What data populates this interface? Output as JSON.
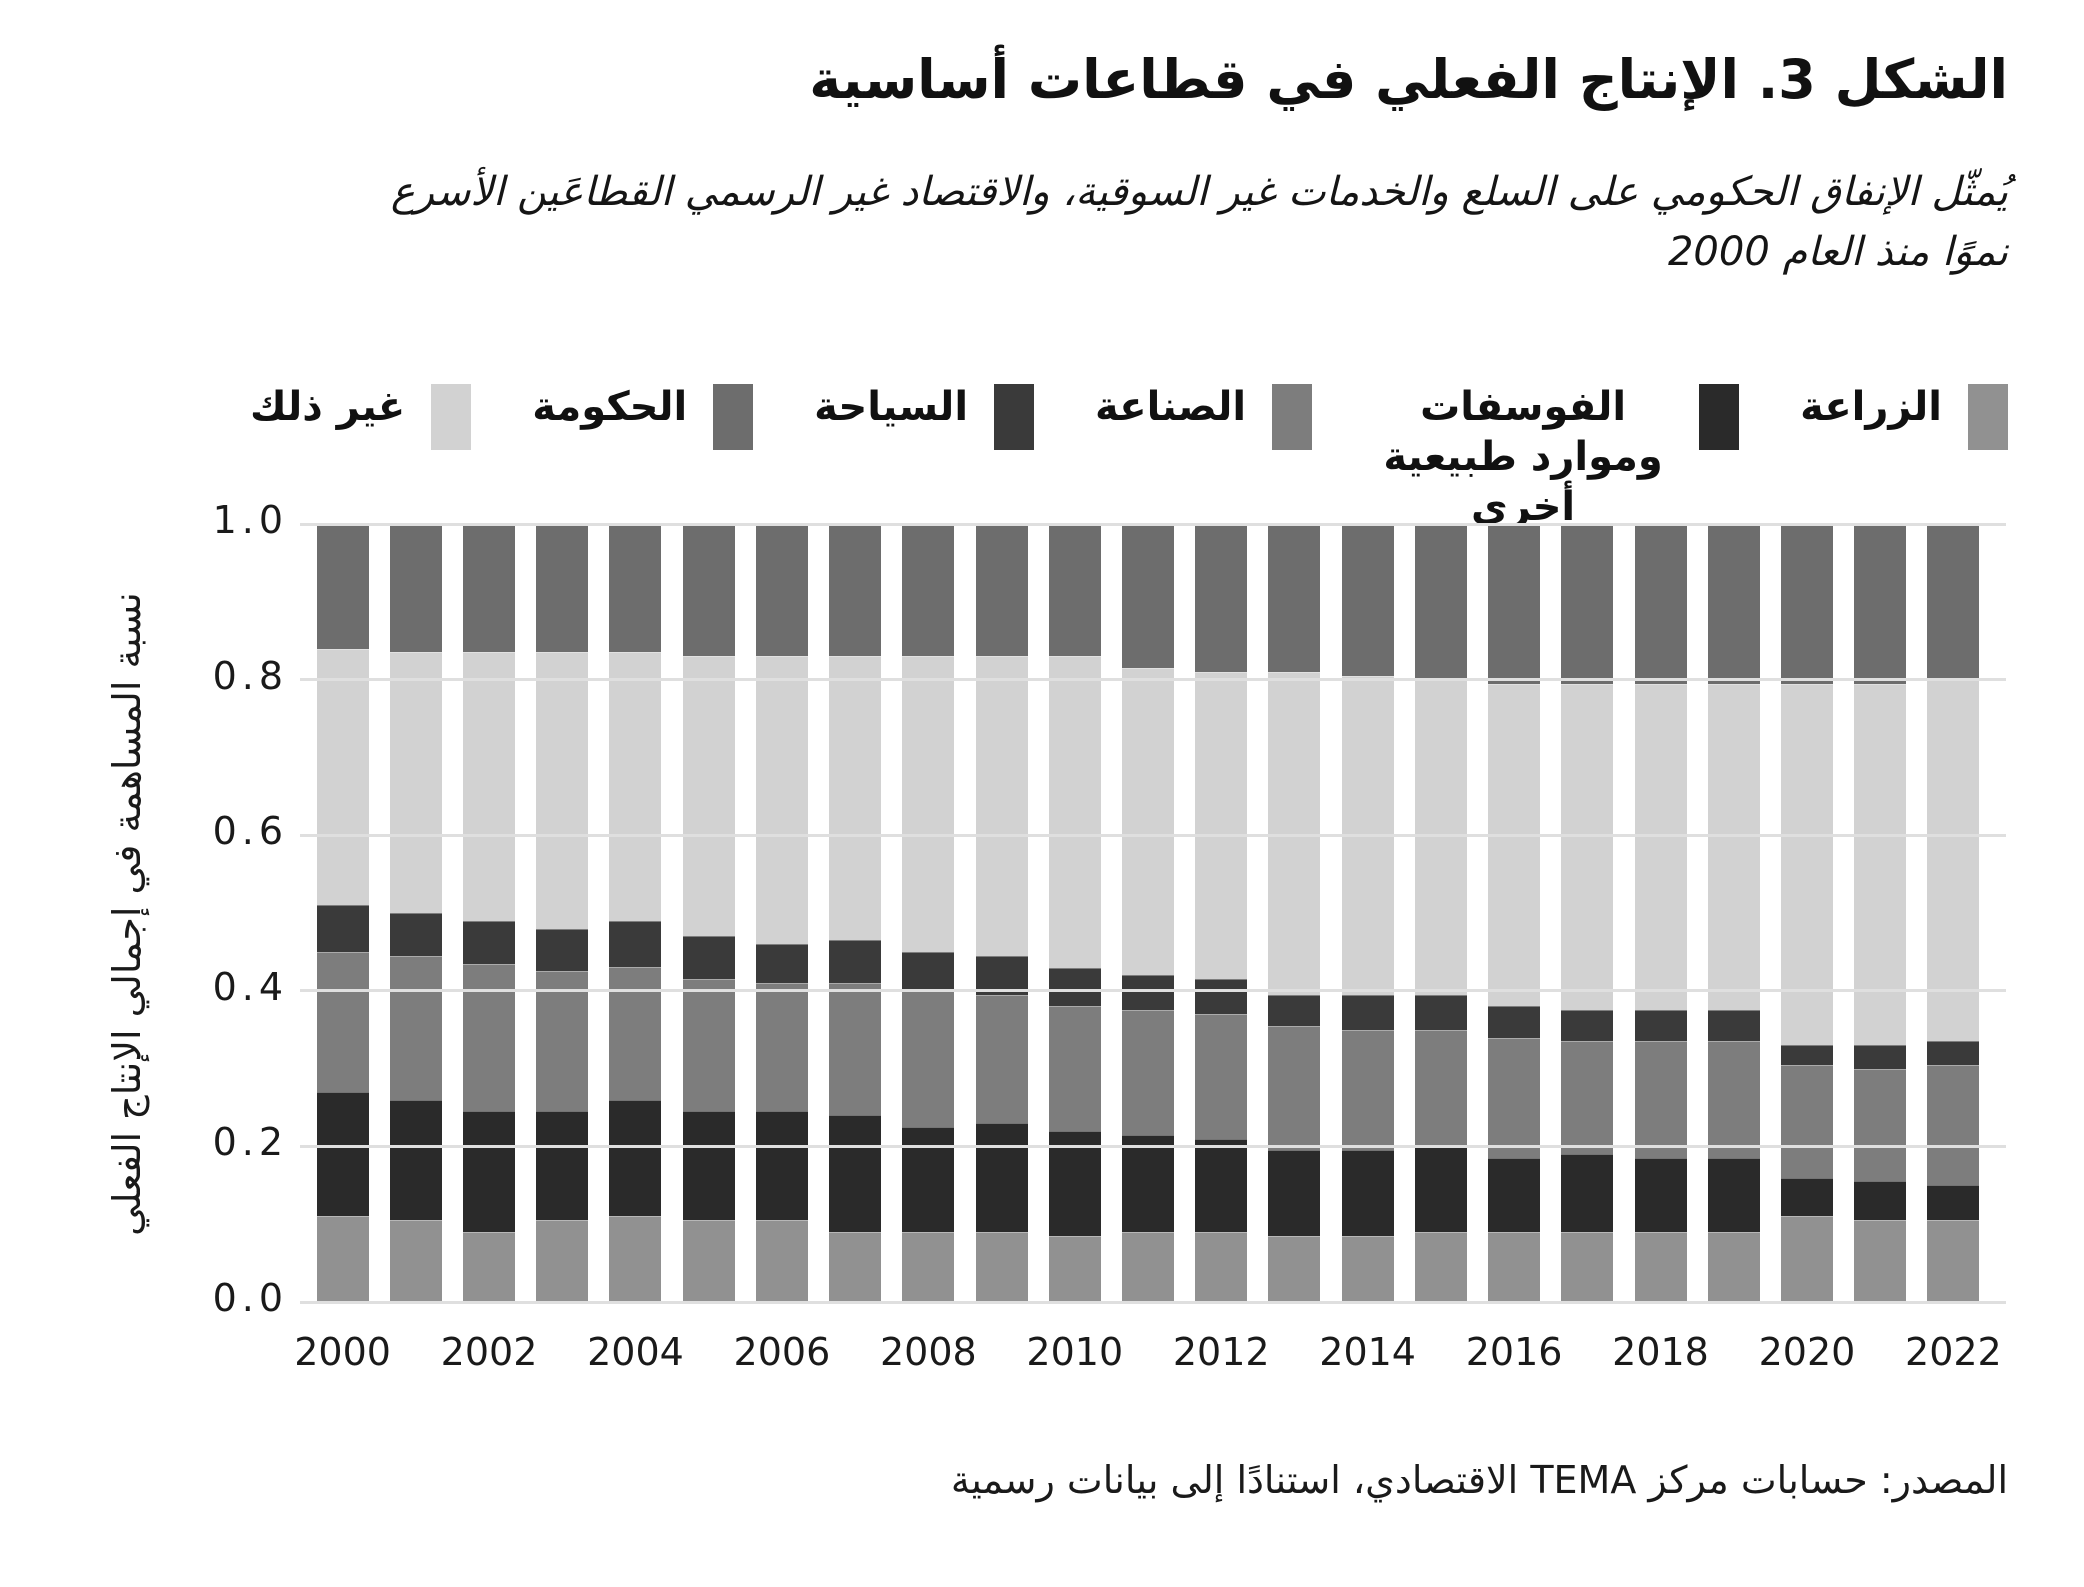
{
  "header": {
    "title": "الشكل 3. الإنتاج الفعلي في قطاعات أساسية",
    "subtitle_line1": "يُمثّل الإنفاق الحكومي على السلع والخدمات غير السوقية، والاقتصاد غير الرسمي القطاعَين الأسرع",
    "subtitle_line2": "نموًا منذ العام 2000"
  },
  "source": "المصدر: حسابات مركز TEMA الاقتصادي، استنادًا إلى بيانات رسمية",
  "colors": {
    "agriculture": "#919191",
    "phosphates": "#2a2a2a",
    "industry": "#7d7d7d",
    "tourism": "#3a3a3a",
    "other": "#d2d2d2",
    "government": "#6d6d6d",
    "gridline": "#dfdfdf"
  },
  "legend_items": [
    {
      "label": "غير ذلك",
      "color": "#d2d2d2",
      "wrap": false
    },
    {
      "label": "الحكومة",
      "color": "#6d6d6d",
      "wrap": false
    },
    {
      "label": "السياحة",
      "color": "#3a3a3a",
      "wrap": false
    },
    {
      "label": "الصناعة",
      "color": "#7d7d7d",
      "wrap": false
    },
    {
      "label": "الفوسفات وموارد طبيعية أخرى",
      "color": "#2a2a2a",
      "wrap": true
    },
    {
      "label": "الزراعة",
      "color": "#919191",
      "wrap": false
    }
  ],
  "chart_data": {
    "type": "bar",
    "stacked": true,
    "title": "الشكل 3. الإنتاج الفعلي في قطاعات أساسية",
    "xlabel": "",
    "ylabel": "نسبة المساهمة في إجمالي الإنتاج الفعلي",
    "ylim": [
      0.0,
      1.0
    ],
    "grid": true,
    "legend_position": "top",
    "x": [
      2000,
      2001,
      2002,
      2003,
      2004,
      2005,
      2006,
      2007,
      2008,
      2009,
      2010,
      2011,
      2012,
      2013,
      2014,
      2015,
      2016,
      2017,
      2018,
      2019,
      2020,
      2021,
      2022
    ],
    "x_tick_labels": [
      "2000",
      "2002",
      "2004",
      "2006",
      "2008",
      "2010",
      "2012",
      "2014",
      "2016",
      "2018",
      "2020",
      "2022"
    ],
    "y_ticks": [
      "1.0",
      "0.8",
      "0.6",
      "0.4",
      "0.2",
      "0.0"
    ],
    "series": [
      {
        "name": "الزراعة",
        "color": "#919191",
        "values": [
          0.11,
          0.105,
          0.09,
          0.105,
          0.11,
          0.105,
          0.105,
          0.09,
          0.09,
          0.09,
          0.085,
          0.09,
          0.09,
          0.085,
          0.085,
          0.09,
          0.09,
          0.09,
          0.09,
          0.09,
          0.11,
          0.105,
          0.105
        ]
      },
      {
        "name": "الفوسفات وموارد طبيعية أخرى",
        "color": "#2a2a2a",
        "values": [
          0.16,
          0.155,
          0.155,
          0.14,
          0.15,
          0.14,
          0.14,
          0.15,
          0.135,
          0.14,
          0.135,
          0.125,
          0.12,
          0.11,
          0.11,
          0.11,
          0.095,
          0.1,
          0.095,
          0.095,
          0.05,
          0.05,
          0.045
        ]
      },
      {
        "name": "الصناعة",
        "color": "#7d7d7d",
        "values": [
          0.18,
          0.185,
          0.19,
          0.18,
          0.17,
          0.17,
          0.165,
          0.17,
          0.175,
          0.165,
          0.16,
          0.16,
          0.16,
          0.16,
          0.155,
          0.15,
          0.155,
          0.145,
          0.15,
          0.15,
          0.145,
          0.145,
          0.155
        ]
      },
      {
        "name": "السياحة",
        "color": "#3a3a3a",
        "values": [
          0.06,
          0.055,
          0.055,
          0.055,
          0.06,
          0.055,
          0.05,
          0.055,
          0.05,
          0.05,
          0.05,
          0.045,
          0.045,
          0.04,
          0.045,
          0.045,
          0.04,
          0.04,
          0.04,
          0.04,
          0.025,
          0.03,
          0.03
        ]
      },
      {
        "name": "غير ذلك",
        "color": "#d2d2d2",
        "values": [
          0.33,
          0.335,
          0.345,
          0.355,
          0.345,
          0.36,
          0.37,
          0.365,
          0.38,
          0.385,
          0.4,
          0.395,
          0.395,
          0.415,
          0.41,
          0.405,
          0.415,
          0.42,
          0.42,
          0.42,
          0.465,
          0.465,
          0.465
        ]
      },
      {
        "name": "الحكومة",
        "color": "#6d6d6d",
        "values": [
          0.16,
          0.165,
          0.165,
          0.165,
          0.165,
          0.17,
          0.17,
          0.17,
          0.17,
          0.17,
          0.17,
          0.185,
          0.19,
          0.19,
          0.195,
          0.2,
          0.205,
          0.205,
          0.205,
          0.205,
          0.205,
          0.205,
          0.2
        ]
      }
    ]
  }
}
